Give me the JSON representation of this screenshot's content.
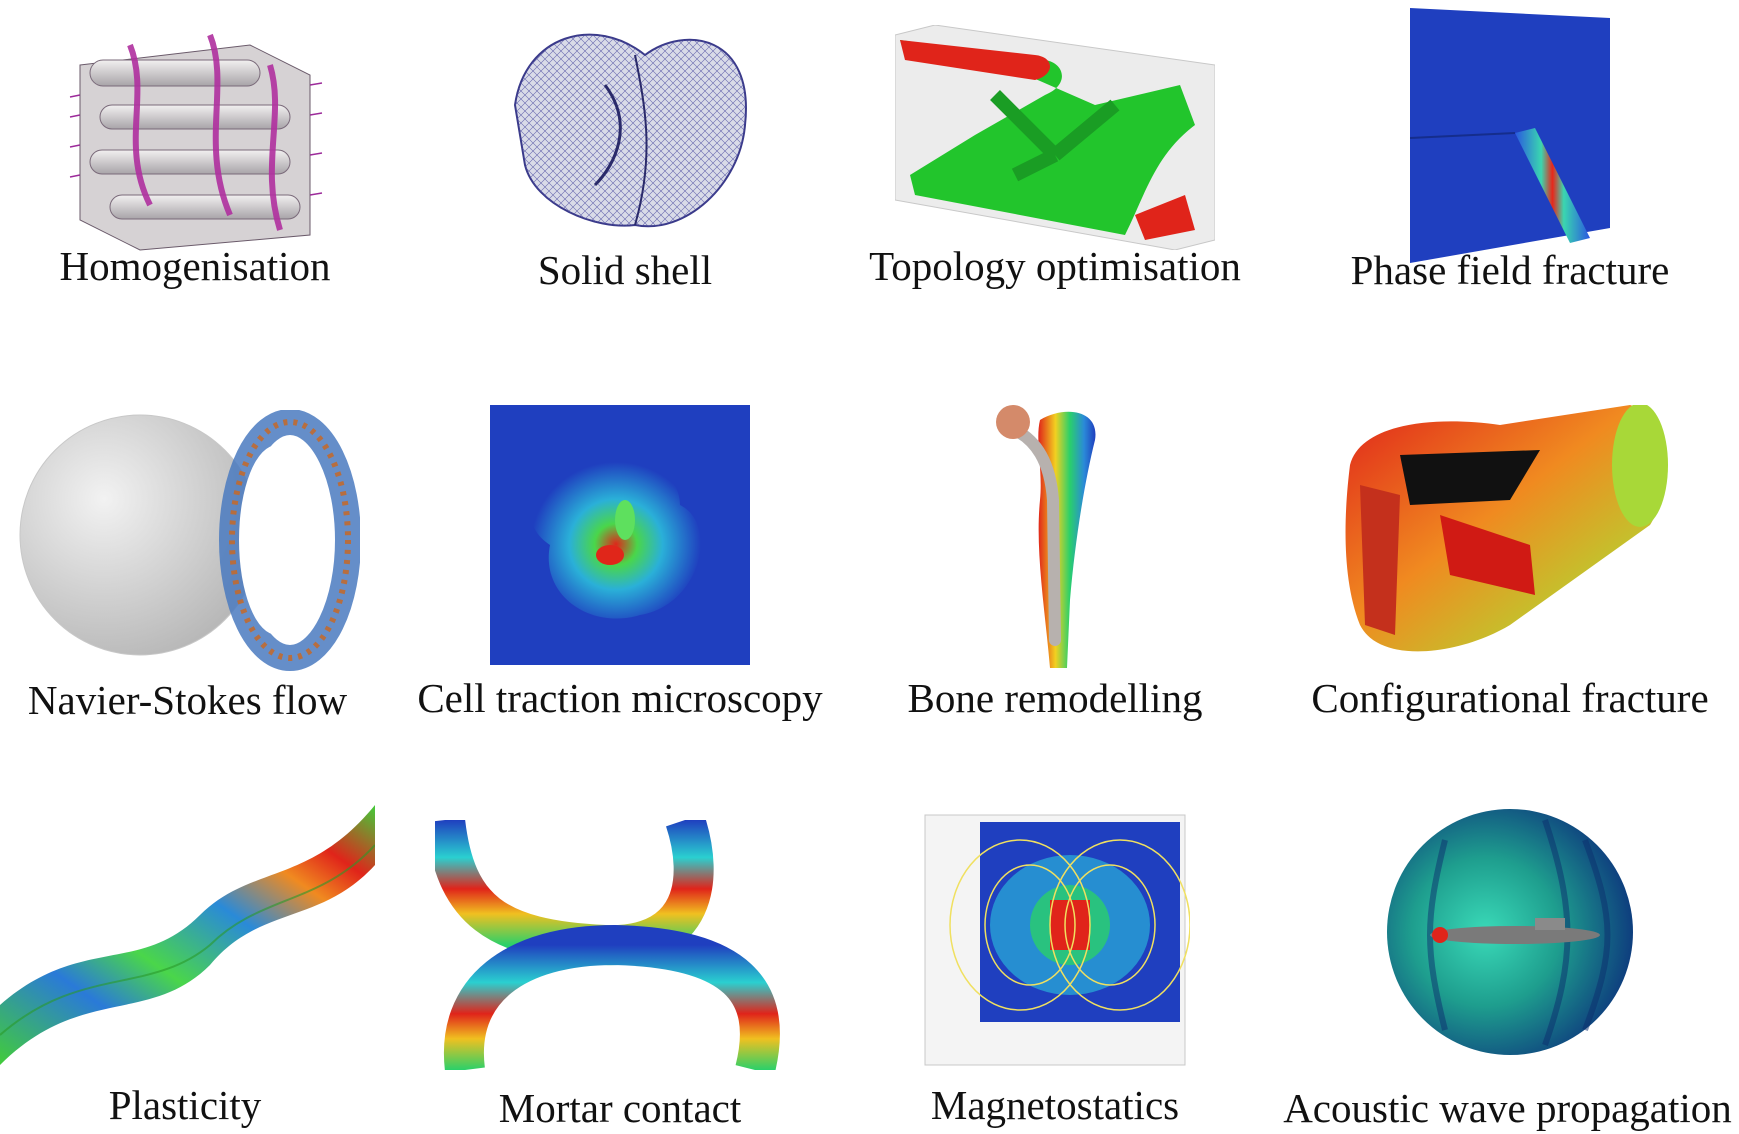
{
  "panels": [
    {
      "id": "homogenisation",
      "label": "Homogenisation"
    },
    {
      "id": "solid-shell",
      "label": "Solid shell"
    },
    {
      "id": "topology-optimisation",
      "label": "Topology optimisation"
    },
    {
      "id": "phase-field-fracture",
      "label": "Phase field fracture"
    },
    {
      "id": "navier-stokes-flow",
      "label": "Navier-Stokes flow"
    },
    {
      "id": "cell-traction-microscopy",
      "label": "Cell traction microscopy"
    },
    {
      "id": "bone-remodelling",
      "label": "Bone remodelling"
    },
    {
      "id": "configurational-fracture",
      "label": "Configurational fracture"
    },
    {
      "id": "plasticity",
      "label": "Plasticity"
    },
    {
      "id": "mortar-contact",
      "label": "Mortar contact"
    },
    {
      "id": "magnetostatics",
      "label": "Magnetostatics"
    },
    {
      "id": "acoustic-wave-propagation",
      "label": "Acoustic wave propagation"
    }
  ],
  "colors": {
    "field_low": "#1f3fbf",
    "field_mid": "#2fd64a",
    "field_high": "#e3261c",
    "mesh_purple": "#7b2a8c",
    "background": "#ffffff"
  }
}
